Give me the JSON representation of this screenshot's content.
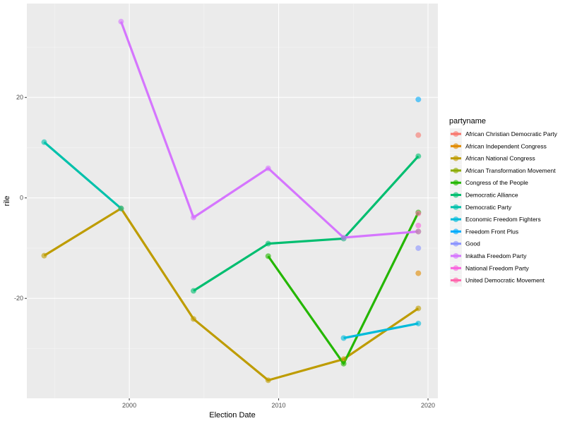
{
  "chart_data": {
    "type": "line",
    "title": "",
    "xlabel": "Election Date",
    "ylabel": "rile",
    "xlim": [
      1993.14,
      2020.66
    ],
    "ylim": [
      -39.9,
      38.7
    ],
    "x_ticks": [
      2000,
      2010,
      2020
    ],
    "x_tick_labels": [
      "2000",
      "2010",
      "2020"
    ],
    "y_ticks": [
      20,
      0,
      -20
    ],
    "y_tick_labels": [
      "20",
      "0",
      "-20"
    ],
    "grid": true,
    "legend": {
      "title": "partyname",
      "position": "right"
    },
    "series": [
      {
        "name": "African Christian Democratic Party",
        "color": "#F8766D",
        "points": [
          [
            2019.35,
            12.5
          ]
        ]
      },
      {
        "name": "African Independent Congress",
        "color": "#E18A00",
        "points": [
          [
            2019.35,
            -15.0
          ]
        ]
      },
      {
        "name": "African National Congress",
        "color": "#BE9C00",
        "points": [
          [
            1994.3,
            -11.5
          ],
          [
            1999.45,
            -2.1
          ],
          [
            2004.3,
            -24.1
          ],
          [
            2009.3,
            -36.3
          ],
          [
            2014.35,
            -32.1
          ],
          [
            2019.35,
            -22.0
          ]
        ]
      },
      {
        "name": "African Transformation Movement",
        "color": "#8CAB00",
        "points": [
          [
            2019.35,
            -6.7
          ]
        ]
      },
      {
        "name": "Congress of the People",
        "color": "#24B700",
        "points": [
          [
            2009.3,
            -11.6
          ],
          [
            2014.35,
            -33.0
          ],
          [
            2019.35,
            -2.9
          ]
        ]
      },
      {
        "name": "Democratic Alliance",
        "color": "#00BE70",
        "points": [
          [
            2004.3,
            -18.5
          ],
          [
            2009.3,
            -9.1
          ],
          [
            2014.35,
            -8.1
          ],
          [
            2019.35,
            8.3
          ]
        ]
      },
      {
        "name": "Democratic Party",
        "color": "#00C1AB",
        "points": [
          [
            1994.3,
            11.1
          ],
          [
            1999.45,
            -2.1
          ]
        ]
      },
      {
        "name": "Economic Freedom Fighters",
        "color": "#00BBDA",
        "points": [
          [
            2014.35,
            -27.9
          ],
          [
            2019.35,
            -25.0
          ]
        ]
      },
      {
        "name": "Freedom Front Plus",
        "color": "#00ACFC",
        "points": [
          [
            2019.35,
            19.6
          ]
        ]
      },
      {
        "name": "Good",
        "color": "#8B93FF",
        "points": [
          [
            2019.35,
            -10.0
          ]
        ]
      },
      {
        "name": "Inkatha Freedom Party",
        "color": "#D575FE",
        "points": [
          [
            1999.45,
            35.1
          ],
          [
            2004.3,
            -3.9
          ],
          [
            2009.3,
            5.9
          ],
          [
            2014.35,
            -7.9
          ],
          [
            2019.35,
            -6.7
          ]
        ]
      },
      {
        "name": "National Freedom Party",
        "color": "#F962DD",
        "points": [
          [
            2019.35,
            -5.5
          ]
        ]
      },
      {
        "name": "United Democratic Movement",
        "color": "#FF65AC",
        "points": [
          [
            2019.35,
            -3.1
          ]
        ]
      }
    ]
  }
}
